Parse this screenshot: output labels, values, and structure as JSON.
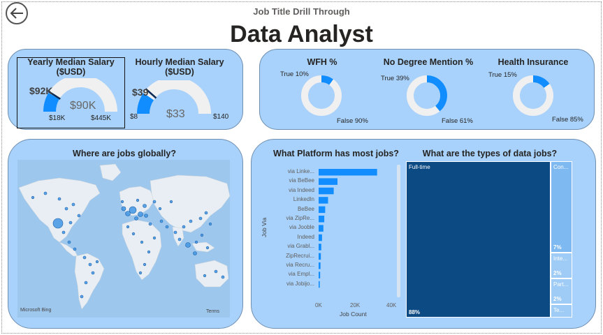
{
  "header": {
    "subtitle": "Job Title Drill Through",
    "title": "Data Analyst"
  },
  "salary": {
    "yearly": {
      "title_line1": "Yearly Median Salary",
      "title_line2": "($USD)",
      "target": "$92K",
      "value": "$90K",
      "min": "$18K",
      "max": "$445K",
      "fill_fraction": 0.17,
      "target_fraction": 0.18
    },
    "hourly": {
      "title_line1": "Hourly Median Salary",
      "title_line2": "($USD)",
      "target": "$39",
      "value": "$33",
      "min": "$8",
      "max": "$140",
      "fill_fraction": 0.19,
      "target_fraction": 0.23
    }
  },
  "benefits": [
    {
      "title": "WFH %",
      "true_label": "True 10%",
      "false_label": "False 90%",
      "true_fraction": 0.1
    },
    {
      "title": "No Degree Mention %",
      "true_label": "True 39%",
      "false_label": "False 61%",
      "true_fraction": 0.39
    },
    {
      "title": "Health Insurance",
      "true_label": "True 15%",
      "false_label": "False 85%",
      "true_fraction": 0.15
    }
  ],
  "map_panel": {
    "title": "Where are jobs globally?",
    "attribution_left": "Microsoft Bing",
    "attribution_right": "Terms"
  },
  "chart_data": [
    {
      "type": "bar",
      "title": "What Platform has most jobs?",
      "xlabel": "Job Count",
      "ylabel": "Job Via",
      "categories": [
        "via Linke...",
        "via BeBee",
        "via Indeed",
        "LinkedIn",
        "BeBee",
        "via ZipRe...",
        "via Jooble",
        "Indeed",
        "via Grabl...",
        "ZipRecrui...",
        "via Recru...",
        "via Empl...",
        "via Jobijo..."
      ],
      "values": [
        31000,
        10000,
        8000,
        5000,
        3500,
        3000,
        2500,
        1800,
        1400,
        1200,
        1000,
        800,
        600
      ],
      "xlim": [
        0,
        40000
      ],
      "xticks": [
        "0K",
        "20K",
        "40K"
      ]
    },
    {
      "type": "treemap",
      "title": "What are the types of data jobs?",
      "categories": [
        "Full-time",
        "Con...",
        "Inte...",
        "Part...",
        "Te..."
      ],
      "values": [
        88,
        7,
        2,
        2,
        1
      ],
      "labels": [
        "88%",
        "7%",
        "2%",
        "2%",
        ""
      ]
    }
  ],
  "colors": {
    "panel_bg": "#a8d2fb",
    "accent": "#118dff",
    "dark_blue": "#0b4a83",
    "gauge_track": "#f0f0f0"
  }
}
